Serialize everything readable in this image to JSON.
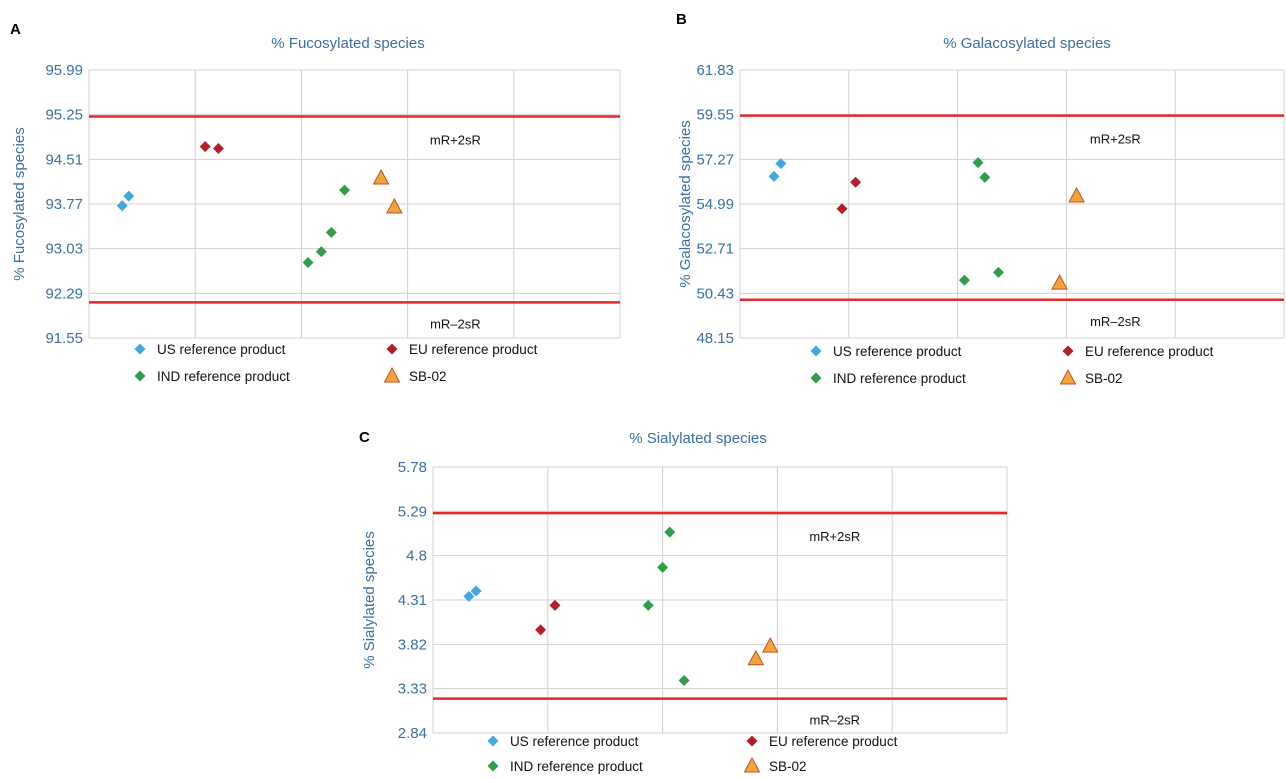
{
  "colors": {
    "us": "#3fa9e0",
    "eu": "#b3202a",
    "ind": "#2f9e4a",
    "sb": "#f2a33a",
    "sb_stroke": "#c0502a",
    "limit": "#e8262c",
    "text": "#3a6fa8"
  },
  "legend": {
    "us": "US reference product",
    "eu": "EU reference product",
    "ind": "IND reference product",
    "sb": "SB-02"
  },
  "chart_data": [
    {
      "type": "scatter",
      "panel": "A",
      "title": "% Fucosylated species",
      "ylabel": "% Fucosylated species",
      "yticks": [
        "95.99",
        "95.25",
        "94.51",
        "93.77",
        "93.03",
        "92.29",
        "91.55"
      ],
      "ylim": [
        91.55,
        95.99
      ],
      "xlim": [
        0,
        8
      ],
      "grid": true,
      "limits": [
        {
          "label": "mR+2sR",
          "value": 95.22
        },
        {
          "label": "mR–2sR",
          "value": 92.14
        }
      ],
      "series": [
        {
          "key": "us",
          "name": "US reference product",
          "points": [
            [
              0.5,
              93.74
            ],
            [
              0.6,
              93.9
            ]
          ]
        },
        {
          "key": "eu",
          "name": "EU reference product",
          "points": [
            [
              1.75,
              94.72
            ],
            [
              1.95,
              94.69
            ]
          ]
        },
        {
          "key": "ind",
          "name": "IND reference product",
          "points": [
            [
              3.3,
              92.8
            ],
            [
              3.5,
              92.98
            ],
            [
              3.65,
              93.3
            ],
            [
              3.85,
              94.0
            ]
          ]
        },
        {
          "key": "sb",
          "name": "SB-02",
          "points": [
            [
              4.4,
              94.2
            ],
            [
              4.6,
              93.72
            ]
          ]
        }
      ]
    },
    {
      "type": "scatter",
      "panel": "B",
      "title": "% Galacosylated species",
      "ylabel": "% Galacosylated species",
      "yticks": [
        "61.83",
        "59.55",
        "57.27",
        "54.99",
        "52.71",
        "50.43",
        "48.15"
      ],
      "ylim": [
        48.15,
        61.83
      ],
      "xlim": [
        0,
        8
      ],
      "grid": true,
      "limits": [
        {
          "label": "mR+2sR",
          "value": 59.5
        },
        {
          "label": "mR–2sR",
          "value": 50.1
        }
      ],
      "series": [
        {
          "key": "us",
          "name": "US reference product",
          "points": [
            [
              0.5,
              56.4
            ],
            [
              0.6,
              57.05
            ]
          ]
        },
        {
          "key": "eu",
          "name": "EU reference product",
          "points": [
            [
              1.5,
              54.75
            ],
            [
              1.7,
              56.1
            ]
          ]
        },
        {
          "key": "ind",
          "name": "IND reference product",
          "points": [
            [
              3.3,
              51.1
            ],
            [
              3.5,
              57.1
            ],
            [
              3.6,
              56.35
            ],
            [
              3.8,
              51.5
            ]
          ]
        },
        {
          "key": "sb",
          "name": "SB-02",
          "points": [
            [
              4.7,
              50.95
            ],
            [
              4.95,
              55.4
            ]
          ]
        }
      ]
    },
    {
      "type": "scatter",
      "panel": "C",
      "title": "% Sialylated species",
      "ylabel": "% Sialylated species",
      "yticks": [
        "5.78",
        "5.29",
        "4.8",
        "4.31",
        "3.82",
        "3.33",
        "2.84"
      ],
      "ylim": [
        2.84,
        5.78
      ],
      "xlim": [
        0,
        8
      ],
      "grid": true,
      "limits": [
        {
          "label": "mR+2sR",
          "value": 5.27
        },
        {
          "label": "mR–2sR",
          "value": 3.22
        }
      ],
      "series": [
        {
          "key": "us",
          "name": "US reference product",
          "points": [
            [
              0.5,
              4.35
            ],
            [
              0.6,
              4.41
            ]
          ]
        },
        {
          "key": "eu",
          "name": "EU reference product",
          "points": [
            [
              1.5,
              3.98
            ],
            [
              1.7,
              4.25
            ]
          ]
        },
        {
          "key": "ind",
          "name": "IND reference product",
          "points": [
            [
              3.0,
              4.25
            ],
            [
              3.2,
              4.67
            ],
            [
              3.3,
              5.06
            ],
            [
              3.5,
              3.42
            ]
          ]
        },
        {
          "key": "sb",
          "name": "SB-02",
          "points": [
            [
              4.5,
              3.66
            ],
            [
              4.7,
              3.8
            ]
          ]
        }
      ]
    }
  ]
}
